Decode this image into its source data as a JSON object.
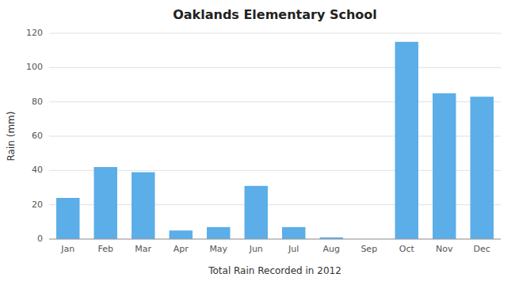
{
  "chart_data": {
    "type": "bar",
    "title": "Oaklands Elementary School",
    "xlabel": "Total Rain Recorded in 2012",
    "ylabel": "Rain (mm)",
    "categories": [
      "Jan",
      "Feb",
      "Mar",
      "Apr",
      "May",
      "Jun",
      "Jul",
      "Aug",
      "Sep",
      "Oct",
      "Nov",
      "Dec"
    ],
    "values": [
      24,
      42,
      39,
      5,
      7,
      31,
      7,
      1,
      0,
      115,
      85,
      83
    ],
    "color": "#5BAEE8",
    "ylim": [
      0,
      120
    ],
    "yticks": [
      0,
      20,
      40,
      60,
      80,
      100,
      120
    ],
    "grid": true
  }
}
